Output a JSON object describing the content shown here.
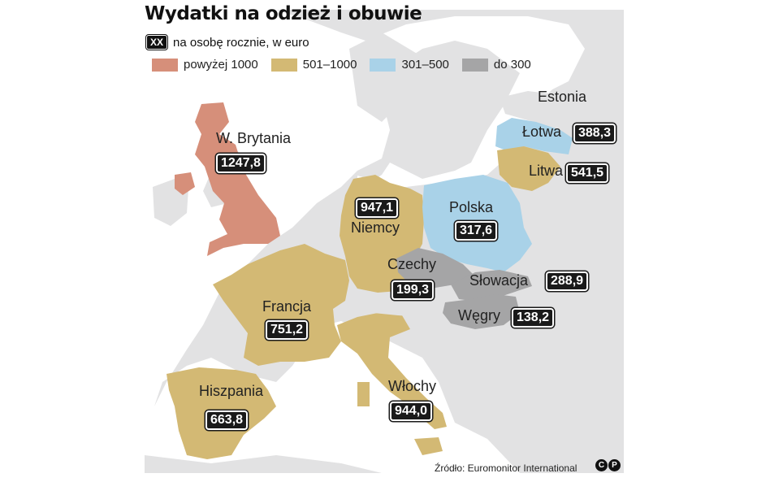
{
  "title": "Wydatki na odzież i obuwie",
  "subtitle": {
    "badge": "XX",
    "text": "na osobę rocznie, w euro"
  },
  "legend": [
    {
      "label": "powyżej 1000",
      "color": "#d68f7a"
    },
    {
      "label": "501–1000",
      "color": "#d3b974"
    },
    {
      "label": "301–500",
      "color": "#a9d2e8"
    },
    {
      "label": "do 300",
      "color": "#a5a5a6"
    }
  ],
  "colors": {
    "background_land": "#e2e2e3",
    "sea": "#ffffff",
    "borders": "#ffffff"
  },
  "countries": [
    {
      "name": "W. Brytania",
      "value": "1247,8",
      "category": "powyżej 1000"
    },
    {
      "name": "Niemcy",
      "value": "947,1",
      "category": "501–1000"
    },
    {
      "name": "Polska",
      "value": "317,6",
      "category": "301–500"
    },
    {
      "name": "Estonia",
      "value": "",
      "category": ""
    },
    {
      "name": "Łotwa",
      "value": "388,3",
      "category": "301–500"
    },
    {
      "name": "Litwa",
      "value": "541,5",
      "category": "501–1000"
    },
    {
      "name": "Czechy",
      "value": "199,3",
      "category": "do 300"
    },
    {
      "name": "Słowacja",
      "value": "288,9",
      "category": "do 300"
    },
    {
      "name": "Węgry",
      "value": "138,2",
      "category": "do 300"
    },
    {
      "name": "Francja",
      "value": "751,2",
      "category": "501–1000"
    },
    {
      "name": "Hiszpania",
      "value": "663,8",
      "category": "501–1000"
    },
    {
      "name": "Włochy",
      "value": "944,0",
      "category": "501–1000"
    }
  ],
  "source": "Źródło: Euromonitor International",
  "logo": [
    "C",
    "P"
  ]
}
